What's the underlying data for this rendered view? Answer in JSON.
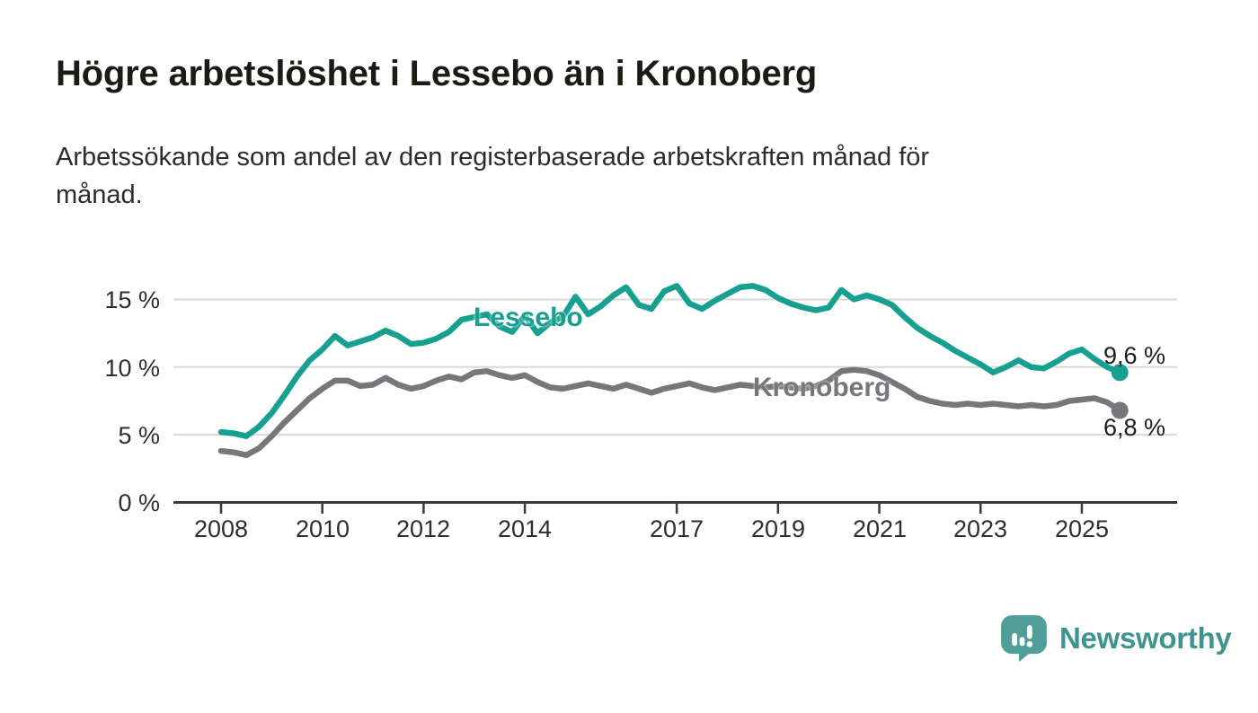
{
  "header": {
    "title": "Högre arbetslöshet i Lessebo än i Kronoberg",
    "subtitle": "Arbetssökande som andel av den registerbaserade arbetskraften månad för månad.",
    "subtitle_lines": [
      "Arbetssökande som andel av den registerbaserade arbetskraften månad för",
      "månad."
    ]
  },
  "chart": {
    "y_ticks": [
      {
        "label": "15 %",
        "value": 15
      },
      {
        "label": "10 %",
        "value": 10
      },
      {
        "label": "5 %",
        "value": 5
      },
      {
        "label": "0 %",
        "value": 0
      }
    ],
    "x_ticks": [
      {
        "label": "2008",
        "year": 2008
      },
      {
        "label": "2010",
        "year": 2010
      },
      {
        "label": "2012",
        "year": 2012
      },
      {
        "label": "2014",
        "year": 2014
      },
      {
        "label": "2017",
        "year": 2017
      },
      {
        "label": "2019",
        "year": 2019
      },
      {
        "label": "2021",
        "year": 2021
      },
      {
        "label": "2023",
        "year": 2023
      },
      {
        "label": "2025",
        "year": 2025
      }
    ],
    "series_labels": {
      "lessebo": "Lessebo",
      "kronoberg": "Kronoberg"
    },
    "end_labels": {
      "lessebo": "9,6 %",
      "kronoberg": "6,8 %"
    },
    "colors": {
      "lessebo": "#17a08f",
      "kronoberg": "#77767b",
      "grid": "#d9d9d9",
      "axis": "#3a3a3a",
      "text": "#2e2e2e"
    }
  },
  "chart_data": {
    "type": "line",
    "title": "Högre arbetslöshet i Lessebo än i Kronoberg",
    "subtitle": "Arbetssökande som andel av den registerbaserade arbetskraften månad för månad.",
    "unit": "%",
    "x_start": 2008.0,
    "x_step_years": 0.25,
    "x_end": 2025.75,
    "sampling": "quarterly values estimated from plotted monthly line",
    "xlabel": "",
    "ylabel": "",
    "ylim": [
      0,
      17
    ],
    "xlim": [
      2008,
      2026
    ],
    "grid": "horizontal",
    "legend_position": "inline-labels-on-lines",
    "series": [
      {
        "name": "Lessebo",
        "color": "#17a08f",
        "last_value": 9.6,
        "last_value_label": "9,6 %",
        "values": [
          5.2,
          5.1,
          4.9,
          5.6,
          6.6,
          7.9,
          9.3,
          10.5,
          11.3,
          12.3,
          11.6,
          11.9,
          12.2,
          12.7,
          12.3,
          11.7,
          11.8,
          12.1,
          12.6,
          13.5,
          13.7,
          13.9,
          13.0,
          12.6,
          13.8,
          12.5,
          13.3,
          13.7,
          15.2,
          13.9,
          14.5,
          15.3,
          15.9,
          14.6,
          14.3,
          15.6,
          16.0,
          14.7,
          14.3,
          14.9,
          15.4,
          15.9,
          16.0,
          15.7,
          15.1,
          14.7,
          14.4,
          14.2,
          14.4,
          15.7,
          15.0,
          15.3,
          15.0,
          14.6,
          13.7,
          12.9,
          12.3,
          11.8,
          11.2,
          10.7,
          10.2,
          9.6,
          10.0,
          10.5,
          10.0,
          9.9,
          10.4,
          11.0,
          11.3,
          10.6,
          10.0,
          9.6
        ]
      },
      {
        "name": "Kronoberg",
        "color": "#77767b",
        "last_value": 6.8,
        "last_value_label": "6,8 %",
        "values": [
          3.8,
          3.7,
          3.5,
          4.0,
          4.9,
          5.9,
          6.8,
          7.7,
          8.4,
          9.0,
          9.0,
          8.6,
          8.7,
          9.2,
          8.7,
          8.4,
          8.6,
          9.0,
          9.3,
          9.1,
          9.6,
          9.7,
          9.4,
          9.2,
          9.4,
          8.9,
          8.5,
          8.4,
          8.6,
          8.8,
          8.6,
          8.4,
          8.7,
          8.4,
          8.1,
          8.4,
          8.6,
          8.8,
          8.5,
          8.3,
          8.5,
          8.7,
          8.6,
          8.5,
          8.6,
          8.5,
          8.4,
          8.6,
          9.0,
          9.7,
          9.8,
          9.7,
          9.4,
          8.9,
          8.4,
          7.8,
          7.5,
          7.3,
          7.2,
          7.3,
          7.2,
          7.3,
          7.2,
          7.1,
          7.2,
          7.1,
          7.2,
          7.5,
          7.6,
          7.7,
          7.4,
          6.8
        ]
      }
    ]
  },
  "branding": {
    "name": "Newsworthy",
    "icon": "bar-chart-speech-bubble",
    "color": "#4f9e97"
  }
}
